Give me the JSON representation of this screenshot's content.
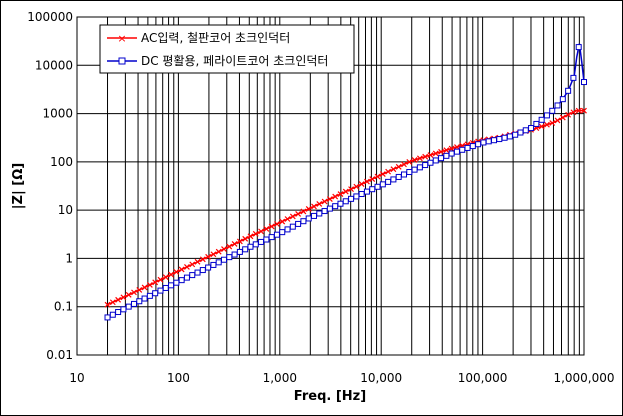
{
  "chart_data": {
    "type": "line",
    "xscale": "log",
    "yscale": "log",
    "xlim": [
      10,
      1000000
    ],
    "ylim": [
      0.01,
      100000
    ],
    "xlabel": "Freq. [Hz]",
    "ylabel": "|Z| [Ω]",
    "x_tick_labels": [
      "10",
      "100",
      "1,000",
      "10,000",
      "100,000",
      "1,000,000"
    ],
    "y_tick_labels": [
      "0.01",
      "0.1",
      "1",
      "10",
      "100",
      "1000",
      "10000",
      "100000"
    ],
    "grid": true,
    "legend_position": "top-left",
    "series": [
      {
        "name": "AC입력, 철판코어 초크인덕터",
        "color": "#ff0000",
        "marker": "x",
        "x": [
          20,
          50,
          100,
          200,
          500,
          1000,
          2000,
          5000,
          10000,
          20000,
          50000,
          100000,
          150000,
          200000,
          300000,
          500000,
          700000,
          850000,
          1000000
        ],
        "y": [
          0.11,
          0.27,
          0.55,
          1.1,
          2.8,
          5.5,
          11,
          27,
          54,
          105,
          190,
          280,
          320,
          380,
          460,
          650,
          950,
          1150,
          1150
        ]
      },
      {
        "name": "DC 평활용, 페라이트코어 초크인덕터",
        "color": "#0000cc",
        "marker": "square",
        "x": [
          20,
          50,
          100,
          200,
          500,
          1000,
          2000,
          5000,
          10000,
          20000,
          50000,
          100000,
          150000,
          200000,
          300000,
          400000,
          500000,
          600000,
          700000,
          800000,
          850000,
          900000,
          950000,
          1000000
        ],
        "y": [
          0.06,
          0.16,
          0.33,
          0.66,
          1.7,
          3.3,
          7,
          17,
          33,
          65,
          150,
          250,
          300,
          350,
          500,
          800,
          1200,
          1800,
          3000,
          6000,
          15000,
          28000,
          12000,
          4500
        ]
      }
    ]
  }
}
